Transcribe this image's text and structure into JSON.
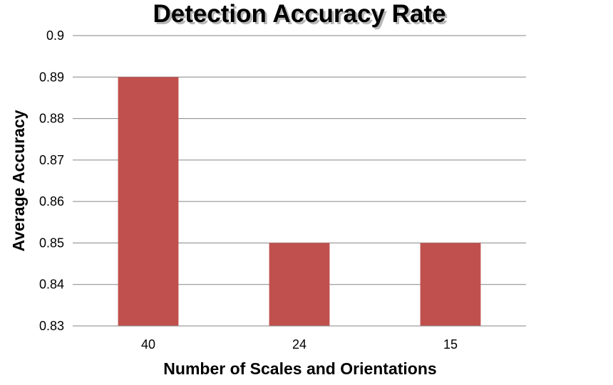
{
  "chart_data": {
    "type": "bar",
    "title": "Detection Accuracy Rate",
    "xlabel": "Number of Scales and Orientations",
    "ylabel": "Average Accuracy",
    "categories": [
      "40",
      "24",
      "15"
    ],
    "values": [
      0.89,
      0.85,
      0.85
    ],
    "ylim": [
      0.83,
      0.9
    ],
    "yticks": [
      "0.83",
      "0.84",
      "0.85",
      "0.86",
      "0.87",
      "0.88",
      "0.89",
      "0.9"
    ],
    "grid": true,
    "legend": "none",
    "bar_color": "#C0504D",
    "grid_color": "#868686"
  }
}
